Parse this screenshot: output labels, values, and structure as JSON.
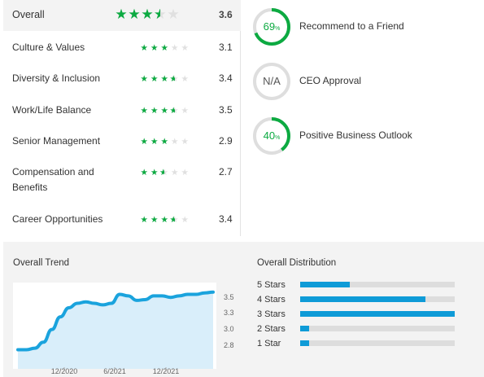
{
  "ratings": {
    "overall": {
      "label": "Overall",
      "value": "3.6",
      "stars": 3.6
    },
    "items": [
      {
        "label": "Culture & Values",
        "value": "3.1",
        "stars": 3.1
      },
      {
        "label": "Diversity & Inclusion",
        "value": "3.4",
        "stars": 3.4
      },
      {
        "label": "Work/Life Balance",
        "value": "3.5",
        "stars": 3.5
      },
      {
        "label": "Senior Management",
        "value": "2.9",
        "stars": 2.9
      },
      {
        "label": "Compensation and Benefits",
        "value": "2.7",
        "stars": 2.7
      },
      {
        "label": "Career Opportunities",
        "value": "3.4",
        "stars": 3.4
      }
    ]
  },
  "stats": [
    {
      "value": "69",
      "unit": "%",
      "label": "Recommend to a Friend",
      "percent": 69
    },
    {
      "value": "N/A",
      "unit": "",
      "label": "CEO Approval",
      "percent": null
    },
    {
      "value": "40",
      "unit": "%",
      "label": "Positive Business Outlook",
      "percent": 40
    }
  ],
  "colors": {
    "star_green": "#0caa41",
    "star_empty": "#e0e0e0",
    "bar_blue": "#0f9bd7",
    "line_blue": "#1aa3dd",
    "area_fill": "#d9eefa"
  },
  "trend": {
    "title": "Overall Trend"
  },
  "distribution": {
    "title": "Overall Distribution",
    "rows": [
      {
        "label": "5 Stars",
        "fraction": 0.32
      },
      {
        "label": "4 Stars",
        "fraction": 0.81
      },
      {
        "label": "3 Stars",
        "fraction": 1.0
      },
      {
        "label": "2 Stars",
        "fraction": 0.06
      },
      {
        "label": "1 Star",
        "fraction": 0.06
      }
    ]
  },
  "chart_data": {
    "type": "area",
    "title": "Overall Trend",
    "xlabel": "",
    "ylabel": "",
    "x_ticks": [
      "12/2020",
      "6/2021",
      "12/2021"
    ],
    "y_ticks": [
      2.8,
      3.0,
      3.3,
      3.5
    ],
    "ylim": [
      2.6,
      3.7
    ],
    "grid": false,
    "series": [
      {
        "x": [
          "2020-05",
          "2020-06",
          "2020-07",
          "2020-08",
          "2020-09",
          "2020-10",
          "2020-11",
          "2020-12",
          "2021-01",
          "2021-02",
          "2021-03",
          "2021-04",
          "2021-05",
          "2021-06",
          "2021-07",
          "2021-08",
          "2021-09",
          "2021-10",
          "2021-11",
          "2021-12",
          "2022-01",
          "2022-02",
          "2022-03",
          "2022-04"
        ],
        "values": [
          2.78,
          2.78,
          2.8,
          2.88,
          3.05,
          3.22,
          3.34,
          3.4,
          3.42,
          3.4,
          3.38,
          3.4,
          3.52,
          3.5,
          3.44,
          3.45,
          3.5,
          3.5,
          3.48,
          3.5,
          3.52,
          3.52,
          3.54,
          3.55
        ]
      }
    ]
  }
}
